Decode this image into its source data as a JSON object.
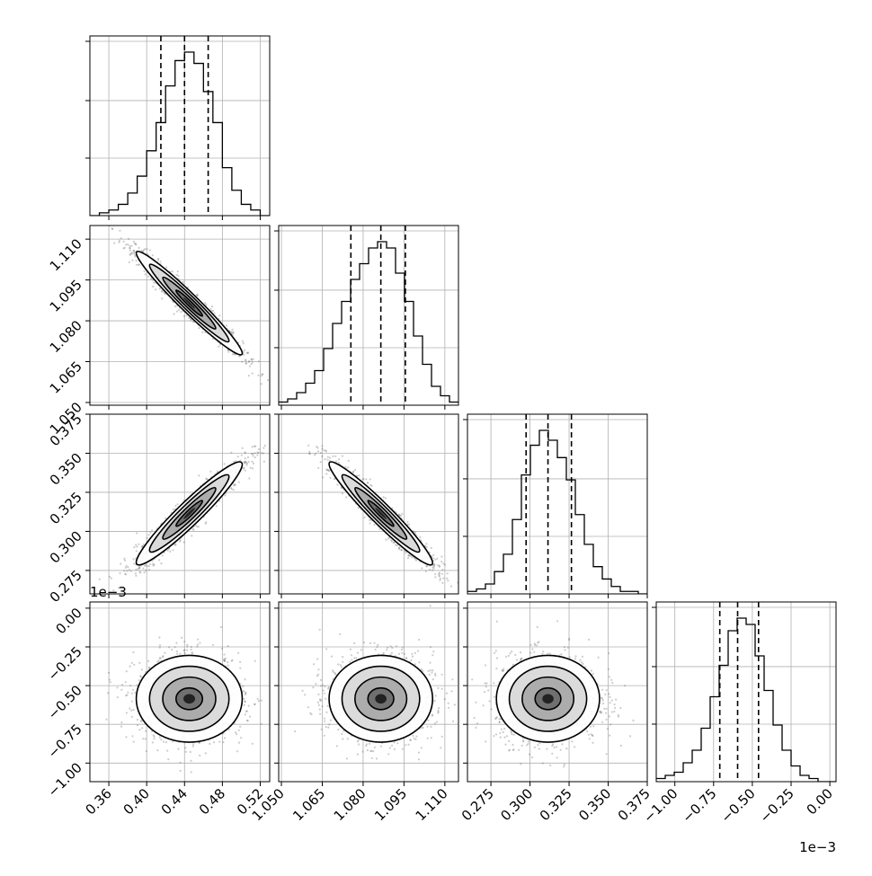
{
  "chart_data": {
    "type": "corner",
    "title": "",
    "variables": [
      {
        "range": [
          0.34,
          0.53
        ],
        "ticks": [
          0.36,
          0.4,
          0.44,
          0.48,
          0.52
        ],
        "tick_labels": [
          "0.36",
          "0.40",
          "0.44",
          "0.48",
          "0.52"
        ],
        "quantiles": [
          0.415,
          0.44,
          0.465
        ]
      },
      {
        "range": [
          1.049,
          1.115
        ],
        "ticks": [
          1.05,
          1.065,
          1.08,
          1.095,
          1.11
        ],
        "tick_labels": [
          "1.050",
          "1.065",
          "1.080",
          "1.095",
          "1.110"
        ],
        "quantiles": [
          1.0755,
          1.0865,
          1.0955
        ]
      },
      {
        "range": [
          0.26,
          0.375
        ],
        "ticks": [
          0.275,
          0.3,
          0.325,
          0.35,
          0.375
        ],
        "tick_labels": [
          "0.275",
          "0.300",
          "0.325",
          "0.350",
          "0.375"
        ],
        "quantiles": [
          0.2975,
          0.3115,
          0.3265
        ]
      },
      {
        "range": [
          -1.12,
          0.04
        ],
        "ticks": [
          -1.0,
          -0.75,
          -0.5,
          -0.25,
          0.0
        ],
        "tick_labels": [
          "−1.00",
          "−0.75",
          "−0.50",
          "−0.25",
          "0.00"
        ],
        "quantiles": [
          -0.71,
          -0.595,
          -0.46
        ]
      }
    ],
    "offset_labels": [
      {
        "text": "1e−3",
        "axis": "y",
        "panel": "row-4"
      },
      {
        "text": "1e−3",
        "axis": "x",
        "panel": "column-4"
      }
    ],
    "histograms": [
      {
        "variable": 1,
        "bin_edges": [
          0.34,
          0.35,
          0.36,
          0.37,
          0.38,
          0.39,
          0.4,
          0.41,
          0.42,
          0.43,
          0.44,
          0.45,
          0.46,
          0.47,
          0.48,
          0.49,
          0.5,
          0.51,
          0.52,
          0.53
        ],
        "counts": [
          0,
          1,
          2,
          4,
          8,
          14,
          23,
          33,
          46,
          55,
          58,
          54,
          44,
          33,
          17,
          9,
          4,
          2,
          0
        ]
      },
      {
        "variable": 2,
        "bin_edges": [
          1.049,
          1.0523,
          1.0556,
          1.0589,
          1.0622,
          1.0655,
          1.0688,
          1.0721,
          1.0754,
          1.0787,
          1.082,
          1.0853,
          1.0886,
          1.0919,
          1.0952,
          1.0985,
          1.1018,
          1.1051,
          1.1084,
          1.1117,
          1.115
        ],
        "counts": [
          1,
          2,
          4,
          7,
          11,
          18,
          26,
          33,
          40,
          45,
          50,
          52,
          50,
          42,
          33,
          22,
          13,
          6,
          3,
          1
        ]
      },
      {
        "variable": 3,
        "bin_edges": [
          0.26,
          0.26575,
          0.2715,
          0.27725,
          0.283,
          0.28875,
          0.2945,
          0.30025,
          0.306,
          0.31175,
          0.3175,
          0.32325,
          0.329,
          0.33475,
          0.3405,
          0.34625,
          0.352,
          0.35775,
          0.3635,
          0.36925,
          0.375
        ],
        "counts": [
          1,
          2,
          4,
          9,
          16,
          30,
          48,
          60,
          66,
          62,
          55,
          46,
          32,
          20,
          11,
          6,
          3,
          1,
          1,
          0
        ]
      },
      {
        "variable": 4,
        "bin_edges": [
          -1.12,
          -1.062,
          -1.004,
          -0.946,
          -0.888,
          -0.83,
          -0.772,
          -0.714,
          -0.656,
          -0.598,
          -0.54,
          -0.482,
          -0.424,
          -0.366,
          -0.308,
          -0.25,
          -0.192,
          -0.134,
          -0.076,
          -0.018,
          0.04
        ],
        "counts": [
          1,
          2,
          3,
          6,
          10,
          17,
          27,
          37,
          48,
          52,
          50,
          40,
          29,
          18,
          10,
          5,
          2,
          1,
          0,
          0
        ]
      }
    ],
    "pair_panels": [
      {
        "x": 1,
        "y": 2,
        "center": [
          0.445,
          1.0865
        ],
        "sigma": [
          0.028,
          0.0095
        ],
        "correlation": -0.97
      },
      {
        "x": 1,
        "y": 3,
        "center": [
          0.445,
          0.3115
        ],
        "sigma": [
          0.028,
          0.0165
        ],
        "correlation": 0.95
      },
      {
        "x": 2,
        "y": 3,
        "center": [
          1.0865,
          0.3115
        ],
        "sigma": [
          0.0095,
          0.0165
        ],
        "correlation": -0.96
      },
      {
        "x": 1,
        "y": 4,
        "center": [
          0.445,
          -0.585
        ],
        "sigma": [
          0.028,
          0.14
        ],
        "correlation": 0.0
      },
      {
        "x": 2,
        "y": 4,
        "center": [
          1.0865,
          -0.585
        ],
        "sigma": [
          0.0095,
          0.14
        ],
        "correlation": 0.0
      },
      {
        "x": 3,
        "y": 4,
        "center": [
          0.3115,
          -0.585
        ],
        "sigma": [
          0.0165,
          0.14
        ],
        "correlation": 0.0
      }
    ],
    "contour_levels_sigma": [
      0.5,
      1.0,
      1.5,
      2.0
    ],
    "grid": true,
    "colors": {
      "line": "#000000",
      "grid": "#b0b0b0",
      "points": "#555555"
    }
  }
}
